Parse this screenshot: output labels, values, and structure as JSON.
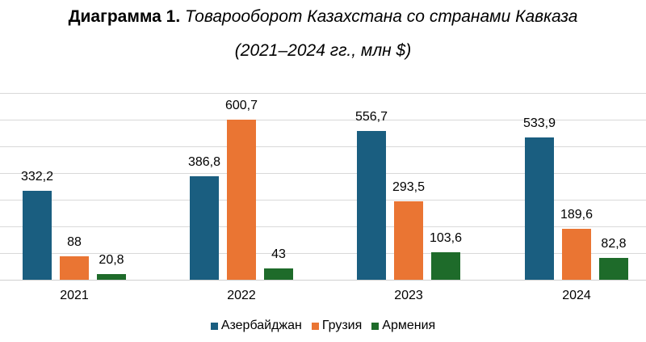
{
  "title": {
    "bold": "Диаграмма 1.",
    "italic": "Товарооборот Казахстана со странами Кавказа",
    "subtitle": "(2021–2024 гг., млн $)"
  },
  "colors": {
    "azerbaijan": "#1a5e80",
    "georgia": "#ea7533",
    "armenia": "#1e6b2a",
    "grid": "#d9d9d9"
  },
  "legend": [
    {
      "label": "Азербайджан",
      "color": "#1a5e80"
    },
    {
      "label": "Грузия",
      "color": "#ea7533"
    },
    {
      "label": "Армения",
      "color": "#1e6b2a"
    }
  ],
  "chart_data": {
    "type": "bar",
    "title": "Диаграмма 1. Товарооборот Казахстана со странами Кавказа (2021–2024 гг., млн $)",
    "xlabel": "",
    "ylabel": "",
    "categories": [
      "2021",
      "2022",
      "2023",
      "2024"
    ],
    "series": [
      {
        "name": "Азербайджан",
        "color": "#1a5e80",
        "values": [
          332.2,
          386.8,
          556.7,
          533.9
        ],
        "labels": [
          "332,2",
          "386,8",
          "556,7",
          "533,9"
        ]
      },
      {
        "name": "Грузия",
        "color": "#ea7533",
        "values": [
          88,
          600.7,
          293.5,
          189.6
        ],
        "labels": [
          "88",
          "600,7",
          "293,5",
          "189,6"
        ]
      },
      {
        "name": "Армения",
        "color": "#1e6b2a",
        "values": [
          20.8,
          43,
          103.6,
          82.8
        ],
        "labels": [
          "20,8",
          "43",
          "103,6",
          "82,8"
        ]
      }
    ],
    "ylim": [
      0,
      700
    ],
    "grid": true,
    "gridline_step": 100,
    "legend_position": "bottom",
    "y_tick_labels_visible": false
  }
}
